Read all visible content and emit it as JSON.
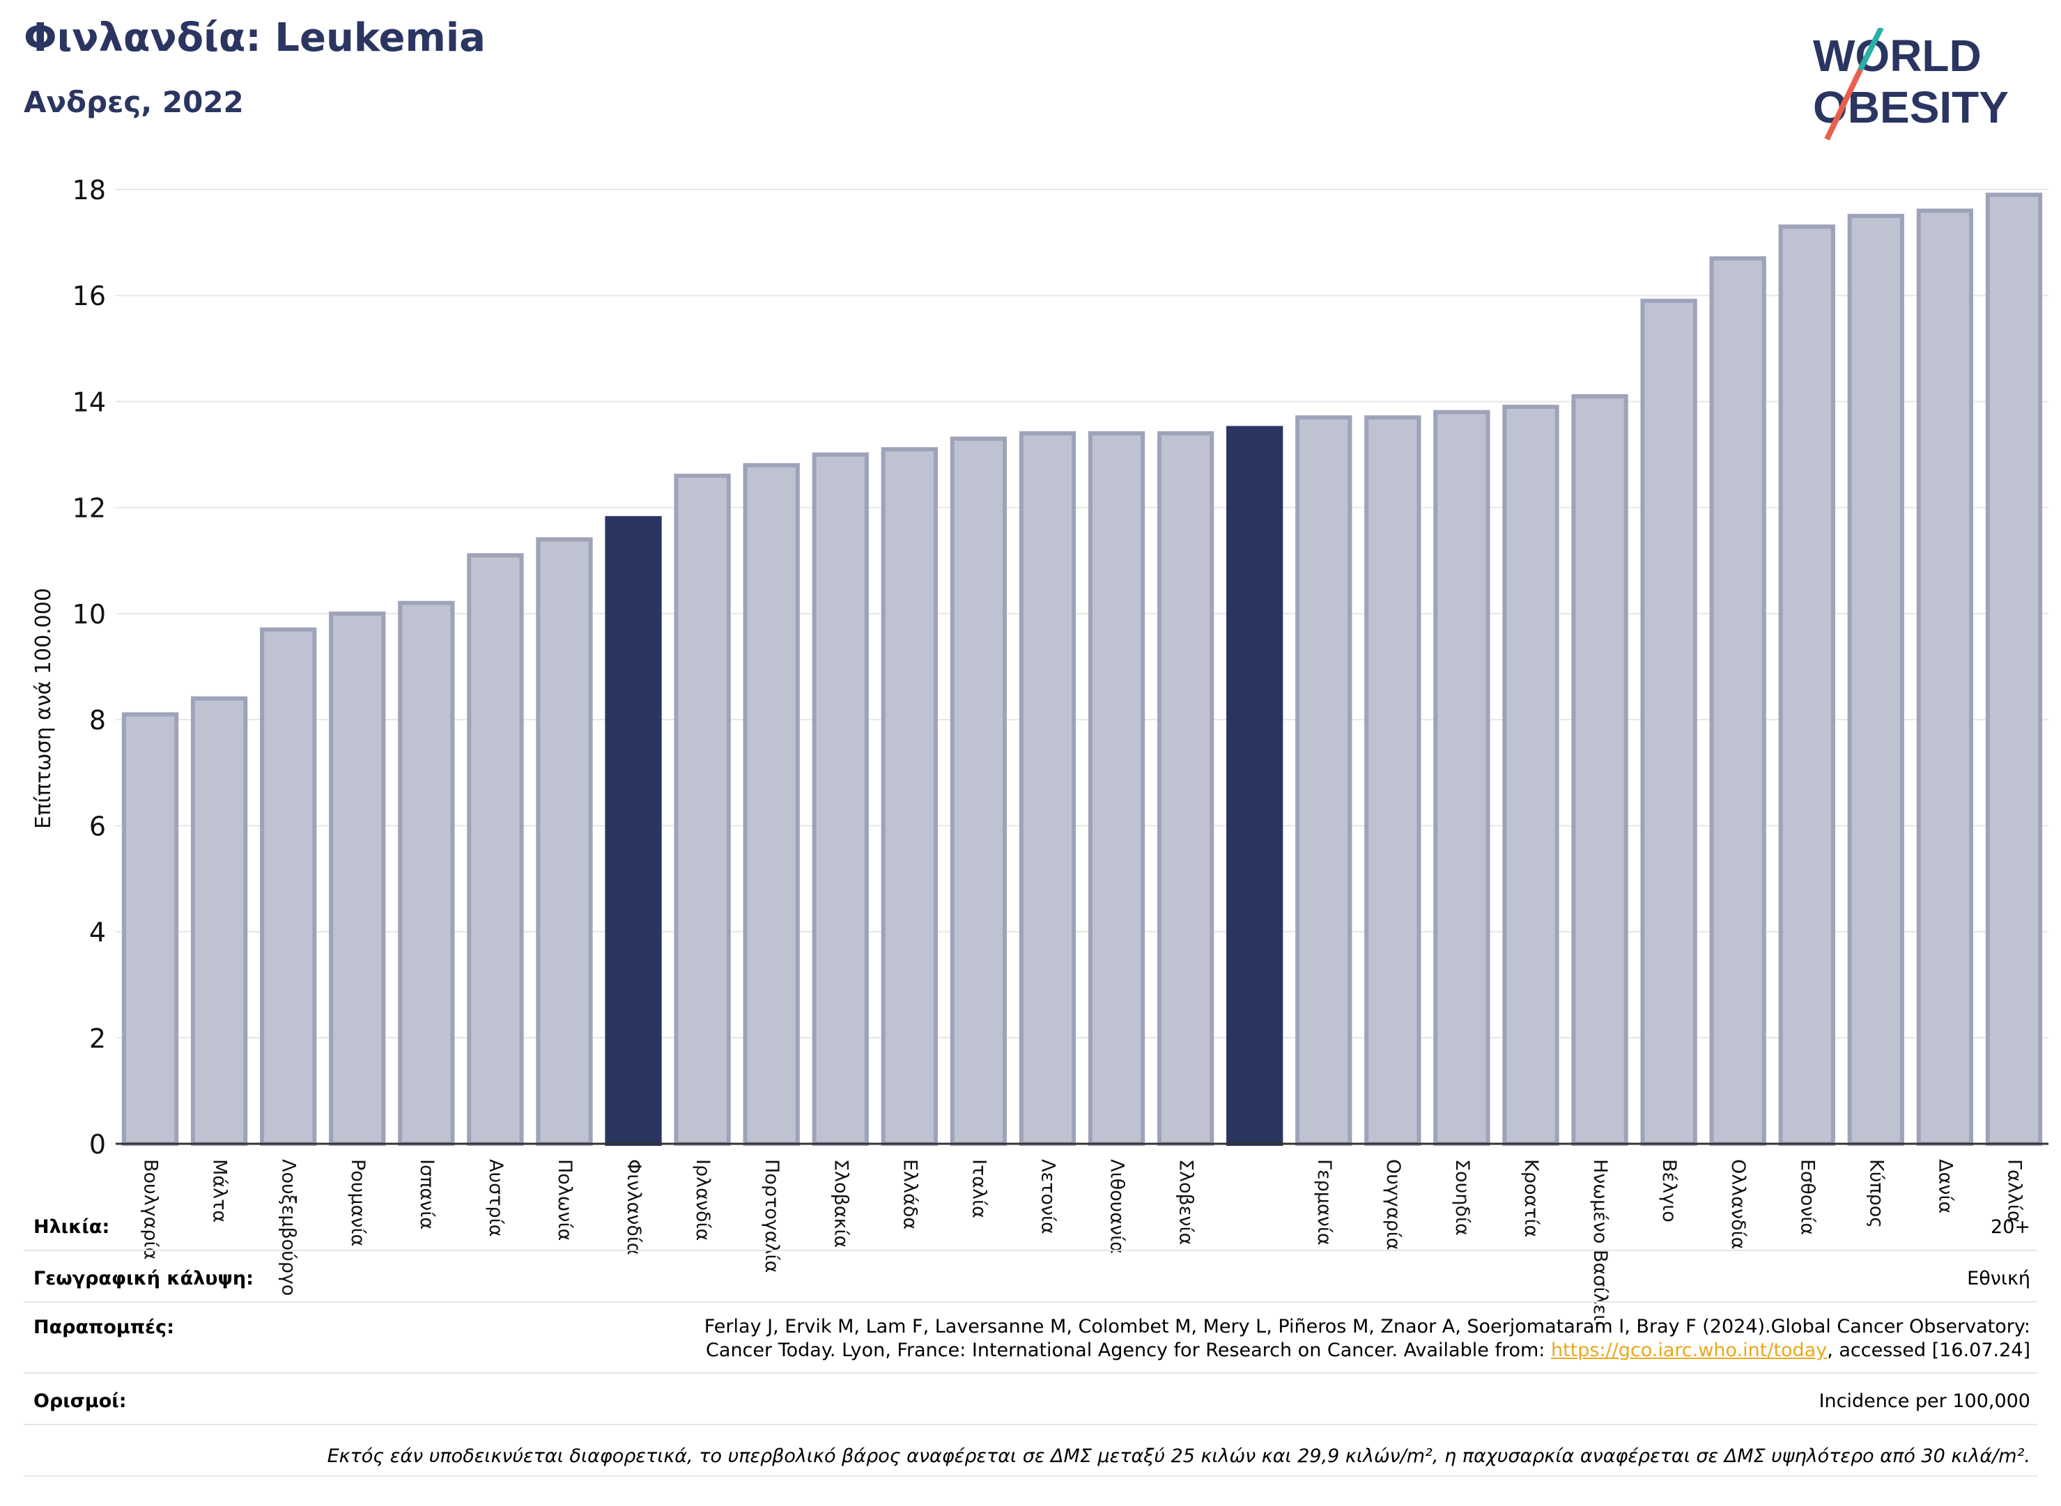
{
  "header": {
    "title": "Φινλανδία: Leukemia",
    "subtitle": "Ανδρες, 2022"
  },
  "logo": {
    "line1": "WORLD",
    "line2": "OBESITY",
    "accent_colors": [
      "#e8604c",
      "#2ab0a6"
    ]
  },
  "chart_data": {
    "type": "bar",
    "ylabel": "Επίπτωση ανά 100.000",
    "ylim": [
      0,
      18
    ],
    "yticks": [
      0,
      2,
      4,
      6,
      8,
      10,
      12,
      14,
      16,
      18
    ],
    "grid": true,
    "categories": [
      "Βουλγαρία",
      "Μάλτα",
      "Λουξεμβούργο",
      "Ρουμανία",
      "Ισπανία",
      "Αυστρία",
      "Πολωνία",
      "Φινλανδία",
      "Ιρλανδία",
      "Πορτογαλία",
      "Σλοβακία",
      "Ελλάδα",
      "Ιταλία",
      "Λετονία",
      "Λιθουανία",
      "Σλοβενία",
      "",
      "Γερμανία",
      "Ουγγαρία",
      "Σουηδία",
      "Κροατία",
      "Ηνωμένο Βασίλειο",
      "Βέλγιο",
      "Ολλανδία",
      "Εσθονία",
      "Κύπρος",
      "Δανία",
      "Γαλλία"
    ],
    "values": [
      8.1,
      8.4,
      9.7,
      10.0,
      10.2,
      11.1,
      11.4,
      11.8,
      12.6,
      12.8,
      13.0,
      13.1,
      13.3,
      13.4,
      13.4,
      13.4,
      13.5,
      13.7,
      13.7,
      13.8,
      13.9,
      14.1,
      15.9,
      16.7,
      17.3,
      17.5,
      17.6,
      17.9
    ],
    "highlight": [
      7,
      16
    ],
    "colors": {
      "bar": "#bfc2d0",
      "bar_border": "#9ea3ba",
      "highlight": "#2a3561",
      "grid": "#e6e6e6",
      "axis": "#333333"
    }
  },
  "meta": {
    "age_label": "Ηλικία:",
    "age_value": "20+",
    "coverage_label": "Γεωγραφική κάλυψη:",
    "coverage_value": "Εθνική",
    "refs_label": "Παραπομπές:",
    "refs_line1": "Ferlay J, Ervik M, Lam F, Laversanne M, Colombet M, Mery L, Piñeros M, Znaor A, Soerjomataram I, Bray F (2024).Global Cancer Observatory:",
    "refs_line2_pre": "Cancer Today. Lyon, France: International Agency for Research on Cancer. Available from: ",
    "refs_link": "https://gco.iarc.who.int/today",
    "refs_line2_post": ", accessed [16.07.24]",
    "defs_label": "Ορισμοί:",
    "defs_value": "Incidence per 100,000",
    "note": "Εκτός εάν υποδεικνύεται διαφορετικά, το υπερβολικό βάρος αναφέρεται σε ΔΜΣ μεταξύ 25 κιλών και 29,9 κιλών/m², η παχυσαρκία αναφέρεται σε ΔΜΣ υψηλότερο από 30 κιλά/m²."
  }
}
